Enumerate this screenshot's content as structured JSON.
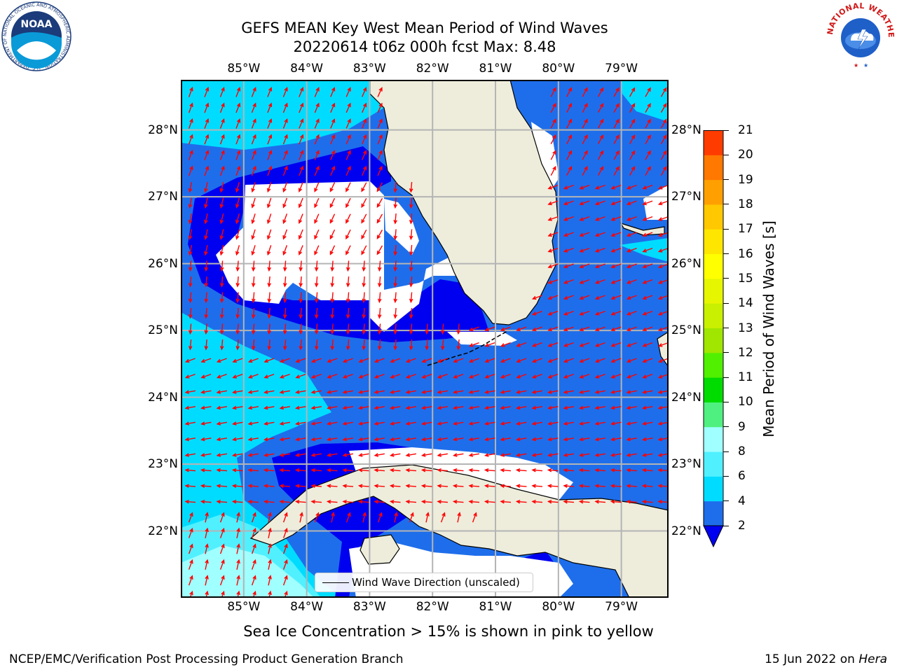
{
  "title_line1": "GEFS MEAN Key West Mean Period of Wind Waves",
  "title_line2": "20220614 t06z 000h fcst   Max: 8.48",
  "lon_ticks": [
    {
      "lon": -85,
      "label": "85°W"
    },
    {
      "lon": -84,
      "label": "84°W"
    },
    {
      "lon": -83,
      "label": "83°W"
    },
    {
      "lon": -82,
      "label": "82°W"
    },
    {
      "lon": -81,
      "label": "81°W"
    },
    {
      "lon": -80,
      "label": "80°W"
    },
    {
      "lon": -79,
      "label": "79°W"
    }
  ],
  "lat_ticks": [
    {
      "lat": 28,
      "label": "28°N"
    },
    {
      "lat": 27,
      "label": "27°N"
    },
    {
      "lat": 26,
      "label": "26°N"
    },
    {
      "lat": 25,
      "label": "25°N"
    },
    {
      "lat": 24,
      "label": "24°N"
    },
    {
      "lat": 23,
      "label": "23°N"
    },
    {
      "lat": 22,
      "label": "22°N"
    }
  ],
  "extent": {
    "lon_min": -86.0,
    "lon_max": -78.25,
    "lat_min": 21.0,
    "lat_max": 28.75
  },
  "legend_label": "Wind Wave Direction (unscaled)",
  "colorbar": {
    "title": "Mean Period of Wind Waves [s]",
    "levels": [
      2,
      4,
      6,
      8,
      9,
      10,
      11,
      12,
      13,
      14,
      15,
      16,
      17,
      18,
      19,
      20,
      21
    ],
    "colors": [
      "#1e6eeb",
      "#00dcff",
      "#50f0ff",
      "#a0ffff",
      "#50f080",
      "#00dc00",
      "#50f000",
      "#a0e600",
      "#c8f000",
      "#e6f500",
      "#ffff00",
      "#ffe600",
      "#ffc800",
      "#ffa000",
      "#ff7800",
      "#ff3c00"
    ],
    "under_color": "#0000f0"
  },
  "field_colors": {
    "level_0_2": "#0000f0",
    "land": "#eeeddc",
    "arrow": "#ff0000",
    "grid": "#b4b4b4"
  },
  "annotation": "Sea Ice Concentration > 15% is shown in pink to yellow",
  "footer_left": "NCEP/EMC/Verification Post Processing Product Generation Branch",
  "footer_right_date": "15 Jun 2022 on",
  "footer_right_machine": "Hera",
  "noaa_logo_text": "NOAA",
  "noaa_ring_text": "NATIONAL OCEANIC AND ATMOSPHERIC ADMINISTRATION · U.S. DEPARTMENT OF COMMERCE ·",
  "nws_ring_text": "NATIONAL WEATHER SERVICE"
}
